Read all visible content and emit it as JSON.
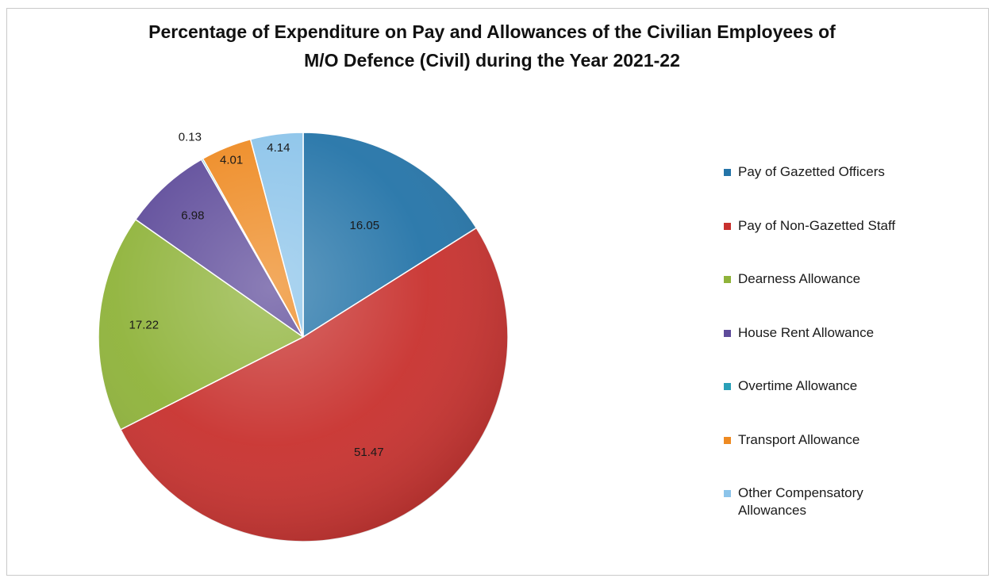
{
  "chart_data": {
    "type": "pie",
    "title": [
      "Percentage of Expenditure on Pay and Allowances  of the Civilian Employees of",
      "M/O Defence (Civil) during the Year 2021-22"
    ],
    "start_angle": 0,
    "direction": "clockwise",
    "legend": "right",
    "slices": [
      {
        "label": "Pay of Gazetted Officers",
        "value": 16.05,
        "value_label": "16.05",
        "color": "#2474a8"
      },
      {
        "label": "Pay of Non-Gazetted Staff",
        "value": 51.47,
        "value_label": "51.47",
        "color": "#c8312e"
      },
      {
        "label": "Dearness Allowance",
        "value": 17.22,
        "value_label": "17.22",
        "color": "#8fb33a"
      },
      {
        "label": "House Rent Allowance",
        "value": 6.98,
        "value_label": "6.98",
        "color": "#5e4b9a"
      },
      {
        "label": "Overtime Allowance",
        "value": 0.13,
        "value_label": "0.13",
        "color": "#2aa0b8"
      },
      {
        "label": "Transport Allowance",
        "value": 4.01,
        "value_label": "4.01",
        "color": "#ee8a22"
      },
      {
        "label": "Other Compensatory Allowances",
        "value": 4.14,
        "value_label": "4.14",
        "color": "#8cc4ea"
      }
    ]
  }
}
